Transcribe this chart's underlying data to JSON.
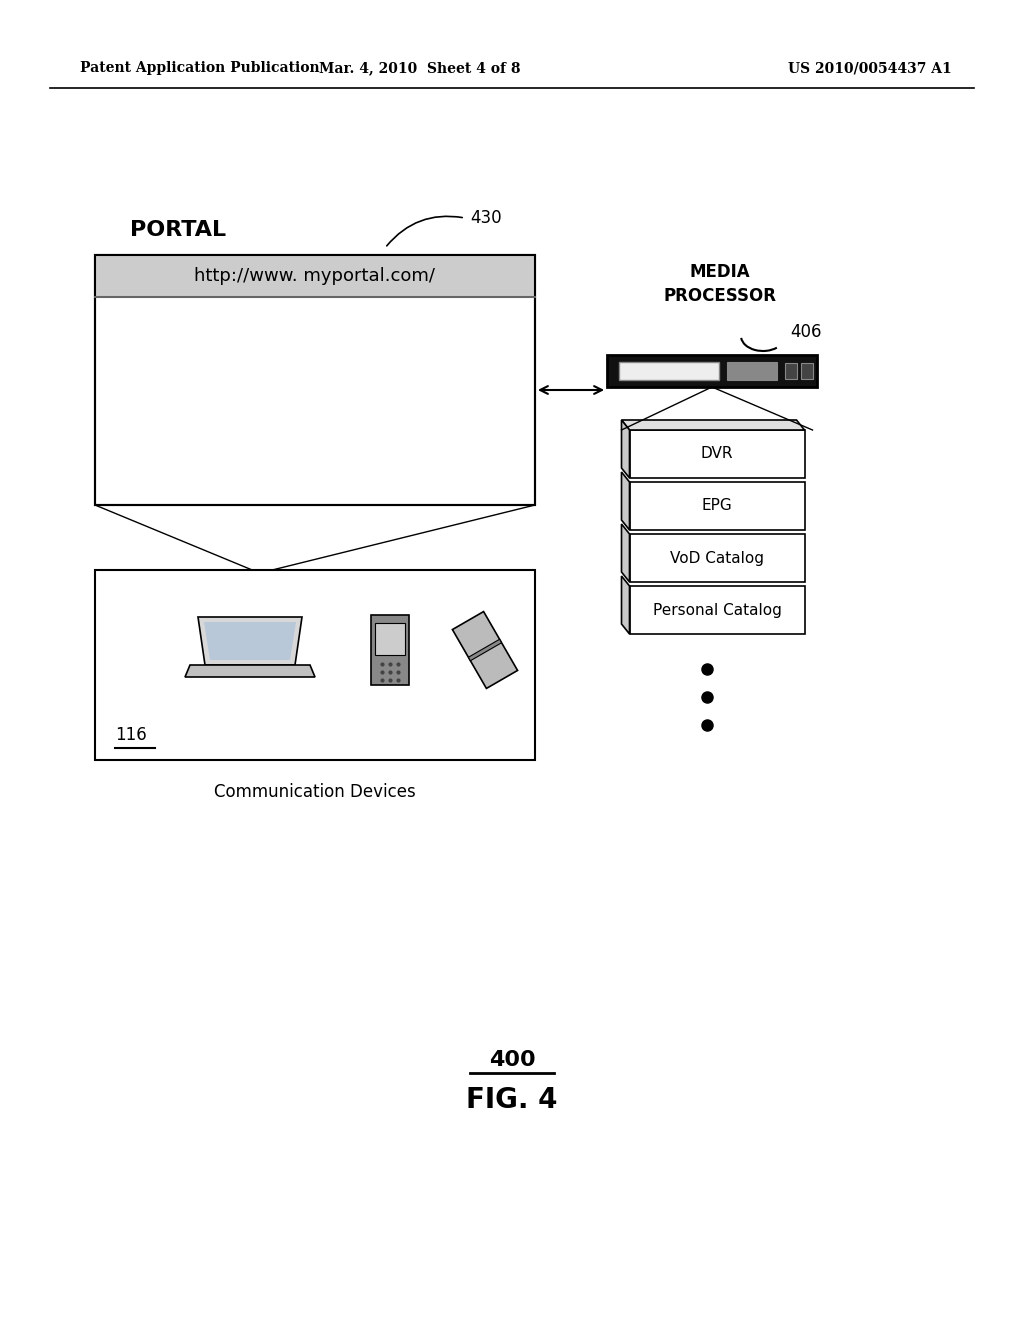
{
  "bg_color": "#ffffff",
  "header_left": "Patent Application Publication",
  "header_mid": "Mar. 4, 2010  Sheet 4 of 8",
  "header_right": "US 2010/0054437 A1",
  "portal_label": "PORTAL",
  "portal_url": "http://www. myportal.com/",
  "portal_ref": "430",
  "devices_label": "Communication Devices",
  "devices_ref": "116",
  "media_label1": "MEDIA",
  "media_label2": "PROCESSOR",
  "media_ref": "406",
  "stack_labels": [
    "DVR",
    "EPG",
    "VoD Catalog",
    "Personal Catalog"
  ],
  "fig_label": "FIG. 4",
  "fig_ref": "400"
}
